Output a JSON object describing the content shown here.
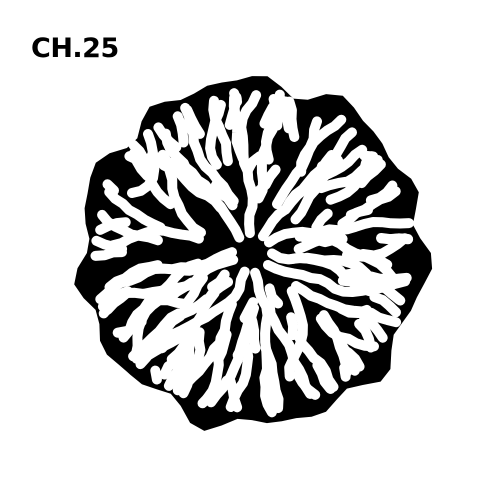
{
  "page": {
    "title": "CH.25"
  },
  "artwork": {
    "kind": "reaction-diffusion labyrinth pattern",
    "shape": "circle",
    "ink_color": "#000000",
    "paper_color": "#ffffff"
  }
}
